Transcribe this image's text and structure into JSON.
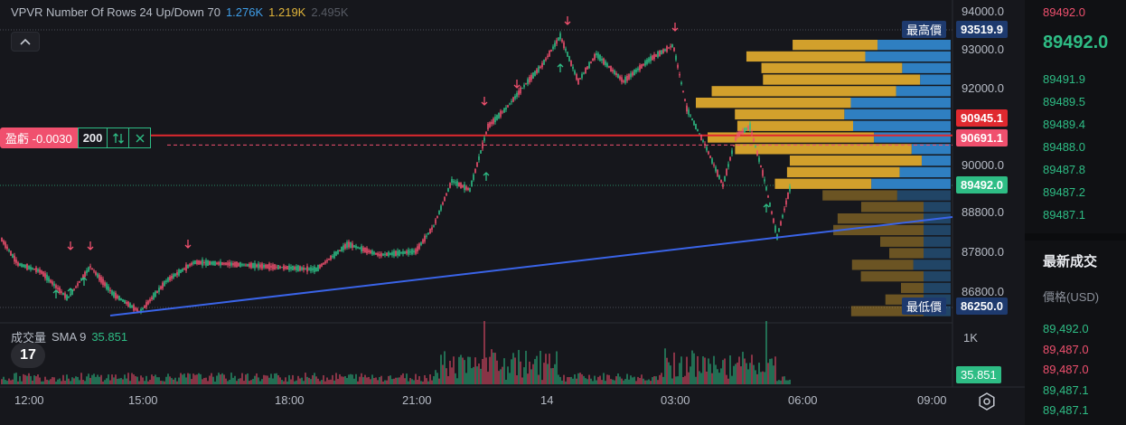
{
  "indicator": {
    "name": "VPVR Number Of Rows 24 Up/Down 70",
    "up_volume": "1.276K",
    "down_volume": "1.219K",
    "total_volume": "2.495K"
  },
  "colors": {
    "bg": "#16171c",
    "up": "#2ebd85",
    "down": "#f0506e",
    "vp_up": "#2f7fc1",
    "vp_down": "#d2a02c",
    "trendline": "#3a64e8",
    "red_line": "#e0292f",
    "axis_dark": "#1e3a6e"
  },
  "collapse_icon": "chevron-up-icon",
  "pnl": {
    "label": "盈虧 -0.0030",
    "qty": "200",
    "reverse_icon": "arrows-updown-icon",
    "close_icon": "close-icon"
  },
  "price_axis": {
    "ticks": [
      "94000.0",
      "93000.0",
      "92000.0",
      "90000.0",
      "88800.0",
      "87800.0",
      "86800.0"
    ],
    "max_label": "最高價",
    "max_value": "93519.9",
    "min_label": "最低價",
    "min_value": "86250.0",
    "red_level": "90945.1",
    "pink_level": "90691.1",
    "last_price": "89492.0"
  },
  "time_axis": [
    "12:00",
    "15:00",
    "18:00",
    "21:00",
    "14",
    "03:00",
    "06:00",
    "09:00"
  ],
  "volume_indicator": {
    "name": "成交量",
    "sma": "SMA 9",
    "value": "35.851",
    "scale_label": "1K",
    "tag": "35.851"
  },
  "logo_text": "17",
  "order_book": {
    "top_ask": "89492.0",
    "last_price": "89492.0",
    "bids": [
      "89491.9",
      "89489.5",
      "89489.4",
      "89488.0",
      "89487.8",
      "89487.2",
      "89487.1"
    ]
  },
  "trades": {
    "title": "最新成交",
    "column_header": "價格(USD)",
    "prices": [
      "89,492.0",
      "89,487.0",
      "89,487.0",
      "89,487.1",
      "89,487.1"
    ]
  },
  "chart_data": {
    "type": "candlestick",
    "x": [
      "12:00",
      "15:00",
      "18:00",
      "21:00",
      "14",
      "03:00",
      "06:00",
      "09:00"
    ],
    "price_range": [
      86250.0,
      93519.9
    ],
    "last_price": 89492.0,
    "high": 93519.9,
    "low": 86250.0,
    "volume_sma9": 35.851
  }
}
